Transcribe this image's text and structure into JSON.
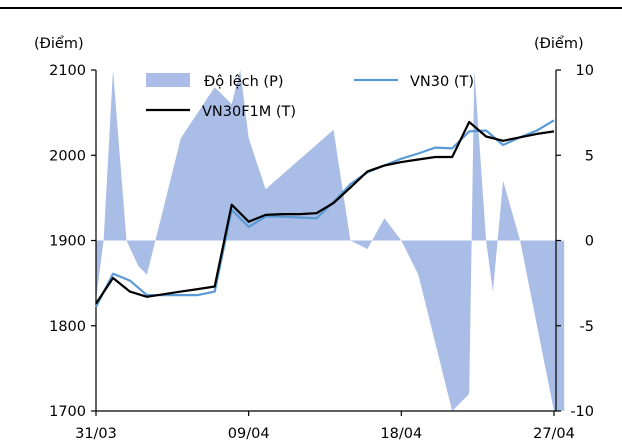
{
  "chart_data": {
    "type": "line",
    "left_unit": "(Điểm)",
    "right_unit": "(Điểm)",
    "x_tick_labels": [
      "31/03",
      "09/04",
      "18/04",
      "27/04"
    ],
    "x_tick_index": [
      0,
      9,
      18,
      27
    ],
    "left_axis": {
      "min": 1700,
      "max": 2100,
      "ticks": [
        "1700",
        "1800",
        "1900",
        "2000",
        "2100"
      ]
    },
    "right_axis": {
      "min": -10,
      "max": 10,
      "ticks": [
        "-10",
        "-5",
        "0",
        "5",
        "10"
      ]
    },
    "legend": {
      "deviation": "Độ lệch (P)",
      "vn30": "VN30 (T)",
      "vn30f1m": "VN30F1M (T)"
    },
    "colors": {
      "deviation": "#a9bde6",
      "vn30": "#5b9bd5",
      "vn30f1m": "#000000"
    },
    "series": [
      {
        "name": "Độ lệch (P)",
        "axis": "right",
        "type": "area",
        "x": [
          0,
          0.45,
          1,
          1.8,
          2.5,
          3,
          4,
          5,
          7,
          8,
          8.5,
          9,
          10,
          14,
          15,
          16,
          17,
          18,
          19,
          21,
          22,
          22.3,
          23,
          23.4,
          24,
          25,
          26,
          27,
          27.6
        ],
        "values": [
          -3.5,
          0,
          10,
          0,
          -1.5,
          -2,
          2,
          6,
          9,
          8,
          10,
          6,
          3,
          6.5,
          0,
          -0.5,
          1.3,
          0,
          -2,
          -10,
          -9,
          10,
          0,
          -3,
          3.5,
          0,
          -5,
          -10,
          -10
        ]
      },
      {
        "name": "VN30 (T)",
        "axis": "left",
        "x": [
          0,
          1,
          2,
          3,
          4,
          5,
          6,
          7,
          8,
          9,
          10,
          11,
          12,
          13,
          14,
          15,
          16,
          17,
          18,
          19,
          20,
          21,
          22,
          23,
          24,
          25,
          26,
          27
        ],
        "values": [
          1822,
          1861,
          1853,
          1836,
          1836,
          1836,
          1836,
          1840,
          1936,
          1916,
          1928,
          1928,
          1927,
          1926,
          1945,
          1966,
          1980,
          1988,
          1996,
          2002,
          2009,
          2008,
          2028,
          2029,
          2012,
          2021,
          2029,
          2041
        ]
      },
      {
        "name": "VN30F1M (T)",
        "axis": "left",
        "x": [
          0,
          1,
          2,
          3,
          4,
          5,
          6,
          7,
          8,
          9,
          10,
          11,
          12,
          13,
          14,
          15,
          16,
          17,
          18,
          19,
          20,
          21,
          22,
          23,
          24,
          25,
          26,
          27
        ],
        "values": [
          1826,
          1856,
          1840,
          1834,
          1837,
          1840,
          1843,
          1846,
          1942,
          1922,
          1930,
          1931,
          1931,
          1932,
          1944,
          1962,
          1981,
          1988,
          1992,
          1995,
          1998,
          1998,
          2039,
          2022,
          2017,
          2021,
          2025,
          2028
        ]
      }
    ],
    "grid": false,
    "legend_position": "top"
  }
}
